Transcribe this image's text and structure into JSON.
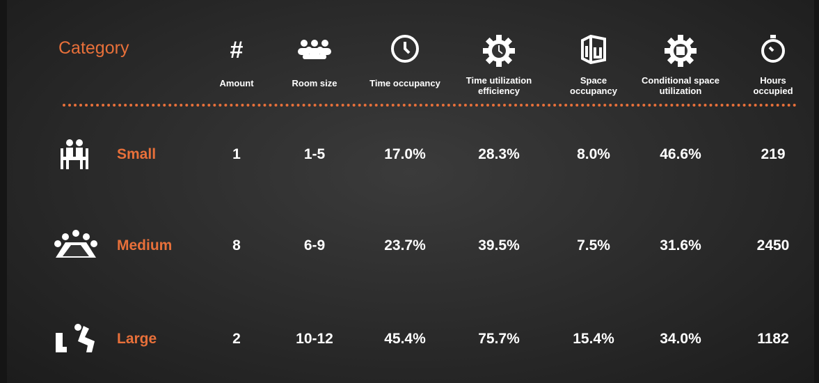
{
  "header": {
    "category": "Category",
    "columns": [
      {
        "symbol": "#",
        "label": "Amount"
      },
      {
        "label": "Room size"
      },
      {
        "label": "Time occupancy"
      },
      {
        "label": "Time utilization efficiency"
      },
      {
        "label": "Space occupancy"
      },
      {
        "label": "Conditional space utilization"
      },
      {
        "label": "Hours occupied"
      }
    ]
  },
  "rows": [
    {
      "name": "Small",
      "cells": [
        "1",
        "1-5",
        "17.0%",
        "28.3%",
        "8.0%",
        "46.6%",
        "219"
      ]
    },
    {
      "name": "Medium",
      "cells": [
        "8",
        "6-9",
        "23.7%",
        "39.5%",
        "7.5%",
        "31.6%",
        "2450"
      ]
    },
    {
      "name": "Large",
      "cells": [
        "2",
        "10-12",
        "45.4%",
        "75.7%",
        "15.4%",
        "34.0%",
        "1182"
      ]
    }
  ]
}
